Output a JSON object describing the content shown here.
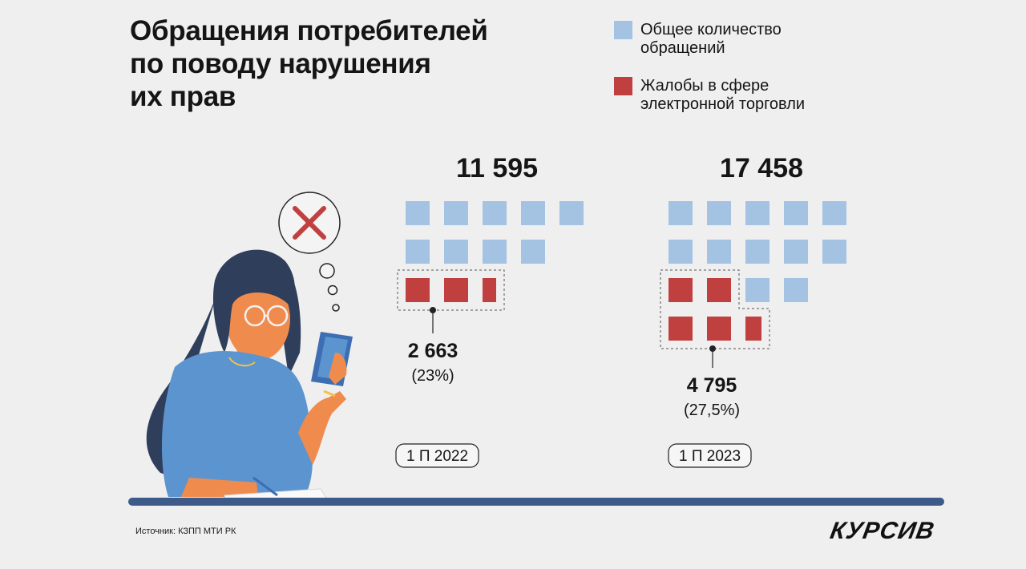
{
  "title": [
    "Обращения потребителей",
    "по поводу нарушения",
    "их прав"
  ],
  "legend": [
    {
      "lines": [
        "Общее количество",
        "обращений"
      ],
      "color": "#a4c2e2"
    },
    {
      "lines": [
        "Жалобы в сфере",
        "электронной торговли"
      ],
      "color": "#c0403f"
    }
  ],
  "chart_data": {
    "type": "bar",
    "categories": [
      "1 П 2022",
      "1 П 2023"
    ],
    "series": [
      {
        "name": "Общее количество обращений",
        "values": [
          11595,
          17458
        ],
        "value_labels": [
          "11 595",
          "17 458"
        ],
        "color": "#a4c2e2"
      },
      {
        "name": "Жалобы в сфере электронной торговли",
        "values": [
          2663,
          4795
        ],
        "value_labels": [
          "2 663",
          "4 795"
        ],
        "share_labels": [
          "(23%)",
          "(27,5%)"
        ],
        "color": "#c0403f"
      }
    ]
  },
  "source": "Источник: КЗПП МТИ РК",
  "logo": "КУРСИВ"
}
